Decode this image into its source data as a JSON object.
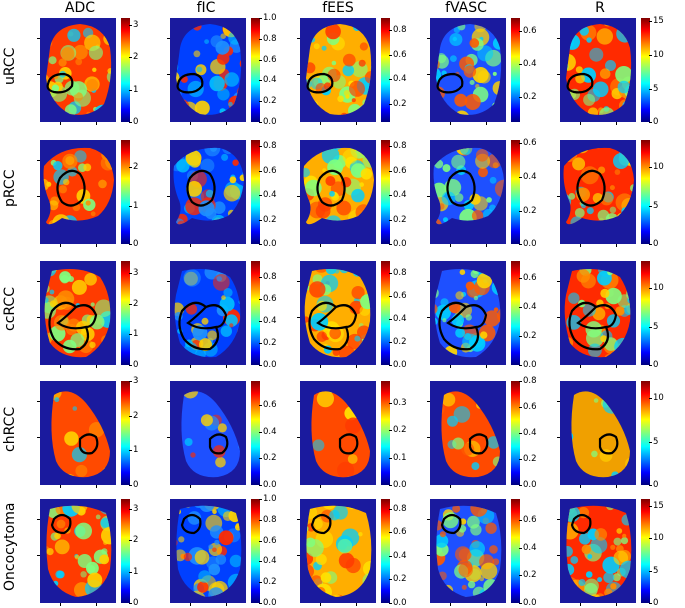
{
  "columns": [
    {
      "label": "ADC"
    },
    {
      "label": "fIC"
    },
    {
      "label": "fEES"
    },
    {
      "label": "fVASC"
    },
    {
      "label": "R"
    }
  ],
  "rows": [
    {
      "label": "uRCC",
      "colorbar_ticks": [
        [
          "0",
          "1",
          "2",
          "3"
        ],
        [
          "0.0",
          "0.2",
          "0.4",
          "0.6",
          "0.8",
          "1.0"
        ],
        [
          "0.2",
          "0.4",
          "0.6",
          "0.8"
        ],
        [
          "0.2",
          "0.4",
          "0.6"
        ],
        [
          "0",
          "5",
          "10",
          "15"
        ]
      ],
      "colorbar_max": [
        3.2,
        1.0,
        0.9,
        0.68,
        15.5
      ],
      "colorbar_min": [
        0,
        0,
        0.05,
        0.05,
        0
      ]
    },
    {
      "label": "pRCC",
      "colorbar_ticks": [
        [
          "0",
          "1",
          "2"
        ],
        [
          "0.0",
          "0.2",
          "0.4",
          "0.6",
          "0.8"
        ],
        [
          "0.0",
          "0.2",
          "0.4",
          "0.6",
          "0.8"
        ],
        [
          "0.0",
          "0.2",
          "0.4",
          "0.6"
        ],
        [
          "0",
          "5",
          "10"
        ]
      ],
      "colorbar_max": [
        2.7,
        0.85,
        0.85,
        0.62,
        13.5
      ],
      "colorbar_min": [
        0,
        0,
        0,
        0,
        0
      ]
    },
    {
      "label": "ccRCC",
      "colorbar_ticks": [
        [
          "0",
          "1",
          "2",
          "3"
        ],
        [
          "0.0",
          "0.2",
          "0.4",
          "0.6",
          "0.8"
        ],
        [
          "0.0",
          "0.2",
          "0.4",
          "0.6",
          "0.8"
        ],
        [
          "0.0",
          "0.2",
          "0.4",
          "0.6"
        ],
        [
          "0",
          "5",
          "10"
        ]
      ],
      "colorbar_max": [
        3.4,
        0.95,
        0.9,
        0.72,
        13.5
      ],
      "colorbar_min": [
        0,
        0,
        0,
        0,
        0
      ]
    },
    {
      "label": "chRCC",
      "colorbar_ticks": [
        [
          "0",
          "1",
          "2",
          "3"
        ],
        [
          "0.0",
          "0.2",
          "0.4",
          "0.6"
        ],
        [
          "0.0",
          "0.1",
          "0.2",
          "0.3"
        ],
        [
          "0.0",
          "0.2",
          "0.4",
          "0.6",
          "0.8"
        ],
        [
          "0",
          "5",
          "10"
        ]
      ],
      "colorbar_max": [
        3.0,
        0.78,
        0.38,
        0.8,
        12.0
      ],
      "colorbar_min": [
        0,
        0,
        0,
        0,
        0
      ]
    },
    {
      "label": "Oncocytoma",
      "colorbar_ticks": [
        [
          "0",
          "1",
          "2",
          "3"
        ],
        [
          "0.0",
          "0.2",
          "0.4",
          "0.6",
          "0.8",
          "1.0"
        ],
        [
          "0.0",
          "0.2",
          "0.4",
          "0.6",
          "0.8"
        ],
        [
          "0.0",
          "0.2",
          "0.4",
          "0.6"
        ],
        [
          "0",
          "5",
          "10",
          "15"
        ]
      ],
      "colorbar_max": [
        3.3,
        1.0,
        0.88,
        0.75,
        16.0
      ],
      "colorbar_min": [
        0,
        0,
        0,
        0,
        0
      ]
    }
  ],
  "colors": {
    "background": "#1a1a9e",
    "roi_outline": "#000000",
    "colormap": [
      "#00007f",
      "#0000ff",
      "#00ffff",
      "#7fff7f",
      "#ffff00",
      "#ff0000",
      "#7f0000"
    ]
  }
}
